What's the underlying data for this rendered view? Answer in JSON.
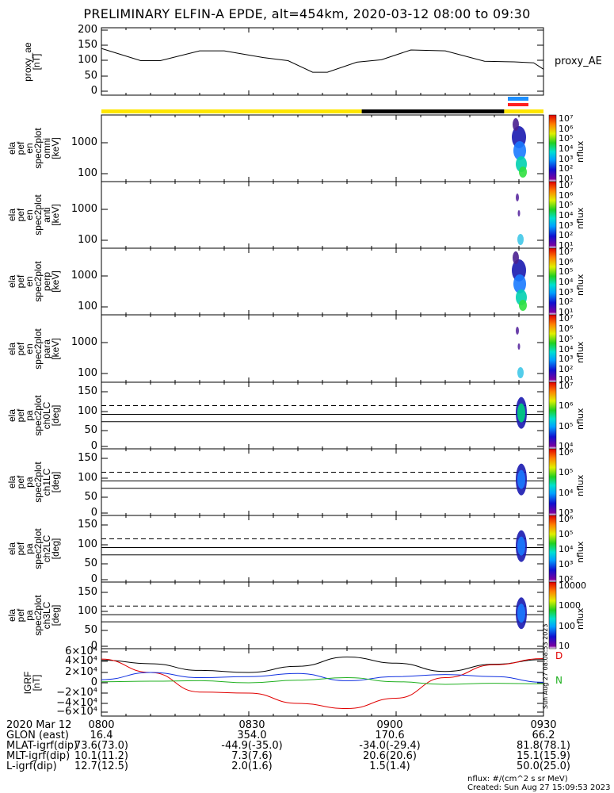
{
  "title": "PRELIMINARY ELFIN-A EPDE, alt=454km, 2020-03-12 08:00 to 09:30",
  "panels": [
    {
      "ylabel": [
        "proxy_ae",
        "[nT]"
      ],
      "right_label": "proxy_AE",
      "yticks": [
        "200",
        "150",
        "100",
        "50",
        "0"
      ]
    },
    {
      "ylabel": [
        "ela",
        "pef",
        "en",
        "spec2plot",
        "omni",
        "[keV]"
      ],
      "yticks": [
        "1000",
        "100"
      ],
      "cbar_ticks": [
        "10⁷",
        "10⁶",
        "10⁵",
        "10⁴",
        "10³",
        "10²",
        "10¹"
      ],
      "cbar_label": "nflux"
    },
    {
      "ylabel": [
        "ela",
        "pef",
        "en",
        "spec2plot",
        "anti",
        "[keV]"
      ],
      "yticks": [
        "1000",
        "100"
      ],
      "cbar_ticks": [
        "10⁷",
        "10⁶",
        "10⁵",
        "10⁴",
        "10³",
        "10²",
        "10¹"
      ],
      "cbar_label": "nflux"
    },
    {
      "ylabel": [
        "ela",
        "pef",
        "en",
        "spec2plot",
        "perp",
        "[keV]"
      ],
      "yticks": [
        "1000",
        "100"
      ],
      "cbar_ticks": [
        "10⁷",
        "10⁶",
        "10⁵",
        "10⁴",
        "10³",
        "10²",
        "10¹"
      ],
      "cbar_label": "nflux"
    },
    {
      "ylabel": [
        "ela",
        "pef",
        "en",
        "spec2plot",
        "para",
        "[keV]"
      ],
      "yticks": [
        "1000",
        "100"
      ],
      "cbar_ticks": [
        "10⁷",
        "10⁶",
        "10⁵",
        "10⁴",
        "10³",
        "10²",
        "10¹"
      ],
      "cbar_label": "nflux"
    },
    {
      "ylabel": [
        "ela",
        "pef",
        "pa",
        "spec2plot",
        "ch0LC",
        "[deg]"
      ],
      "yticks": [
        "150",
        "100",
        "50",
        "0"
      ],
      "cbar_ticks": [
        "10⁷",
        "10⁶",
        "10⁵",
        "10⁴"
      ],
      "cbar_label": "nflux"
    },
    {
      "ylabel": [
        "ela",
        "pef",
        "pa",
        "spec2plot",
        "ch1LC",
        "[deg]"
      ],
      "yticks": [
        "150",
        "100",
        "50",
        "0"
      ],
      "cbar_ticks": [
        "10⁶",
        "10⁵",
        "10⁴",
        "10³"
      ],
      "cbar_label": "nflux"
    },
    {
      "ylabel": [
        "ela",
        "pef",
        "pa",
        "spec2plot",
        "ch2LC",
        "[deg]"
      ],
      "yticks": [
        "150",
        "100",
        "50",
        "0"
      ],
      "cbar_ticks": [
        "10⁶",
        "10⁵",
        "10⁴",
        "10³",
        "10²"
      ],
      "cbar_label": "nflux"
    },
    {
      "ylabel": [
        "ela",
        "pef",
        "pa",
        "spec2plot",
        "ch3LC",
        "[deg]"
      ],
      "yticks": [
        "150",
        "100",
        "50",
        "0"
      ],
      "cbar_ticks": [
        "10000",
        "1000",
        "100",
        "10"
      ],
      "cbar_label": "nflux"
    },
    {
      "ylabel": [
        "IGRF",
        "[nT]"
      ],
      "yticks": [
        "6×10⁴",
        "4×10⁴",
        "2×10⁴",
        "0",
        "−2×10⁴",
        "−4×10⁴",
        "−6×10⁴"
      ],
      "right_marks": [
        "D",
        "N"
      ]
    }
  ],
  "footer": {
    "rows": [
      {
        "label": "2020 Mar 12",
        "vals": [
          "0800",
          "0830",
          "0900",
          "0930"
        ]
      },
      {
        "label": "GLON (east)",
        "vals": [
          "16.4",
          "354.0",
          "170.6",
          "66.2"
        ]
      },
      {
        "label": "MLAT-igrf(dip)",
        "vals": [
          "73.6(73.0)",
          "-44.9(-35.0)",
          "-34.0(-29.4)",
          "81.8(78.1)"
        ]
      },
      {
        "label": "MLT-igrf(dip)",
        "vals": [
          "10.1(11.2)",
          "7.3(7.6)",
          "20.6(20.6)",
          "15.1(15.9)"
        ]
      },
      {
        "label": "L-igrf(dip)",
        "vals": [
          "12.7(12.5)",
          "2.0(1.6)",
          "1.5(1.4)",
          "50.0(25.0)"
        ]
      }
    ],
    "units": "nflux: #/(cm^2 s sr MeV)",
    "created": "Created: Sun Aug 27 15:09:53 2023",
    "side_stamp": "Sun Aug 27 08:08:53 2023"
  },
  "chart_data": {
    "type": "line",
    "x_range": [
      "08:00",
      "09:30"
    ],
    "series": [
      {
        "name": "proxy_AE",
        "x": [
          "08:00",
          "08:03",
          "08:08",
          "08:12",
          "08:20",
          "08:25",
          "08:33",
          "08:38",
          "08:43",
          "08:46",
          "08:52",
          "08:57",
          "09:03",
          "09:10",
          "09:18",
          "09:24",
          "09:28",
          "09:30"
        ],
        "values": [
          140,
          125,
          100,
          100,
          132,
          132,
          110,
          100,
          62,
          62,
          95,
          103,
          135,
          132,
          98,
          96,
          93,
          72
        ]
      },
      {
        "name": "IGRF black",
        "x": [
          "08:00",
          "08:10",
          "08:20",
          "08:30",
          "08:40",
          "08:50",
          "09:00",
          "09:10",
          "09:20",
          "09:30"
        ],
        "values": [
          44000,
          37000,
          24000,
          20000,
          32000,
          50000,
          38000,
          22000,
          36000,
          45000
        ]
      },
      {
        "name": "IGRF red",
        "x": [
          "08:00",
          "08:10",
          "08:20",
          "08:30",
          "08:40",
          "08:50",
          "09:00",
          "09:10",
          "09:20",
          "09:30"
        ],
        "values": [
          46000,
          20000,
          -18000,
          -20000,
          -40000,
          -50000,
          -30000,
          10000,
          35000,
          47000
        ]
      },
      {
        "name": "IGRF blue",
        "x": [
          "08:00",
          "08:10",
          "08:20",
          "08:30",
          "08:40",
          "08:50",
          "09:00",
          "09:10",
          "09:20",
          "09:30"
        ],
        "values": [
          6000,
          20000,
          10000,
          12000,
          18000,
          4000,
          12000,
          16000,
          12000,
          1000
        ]
      },
      {
        "name": "IGRF green",
        "x": [
          "08:00",
          "08:10",
          "08:20",
          "08:30",
          "08:40",
          "08:50",
          "09:00",
          "09:10",
          "09:20",
          "09:30"
        ],
        "values": [
          2000,
          3000,
          4000,
          0,
          5000,
          10000,
          2000,
          -3000,
          -1000,
          -2000
        ]
      }
    ],
    "status_bar": [
      {
        "from": "08:00",
        "to": "08:53",
        "color": "#ffe600"
      },
      {
        "from": "08:53",
        "to": "09:22",
        "color": "#000000"
      },
      {
        "from": "09:22",
        "to": "09:30",
        "color": "#ffe600"
      }
    ],
    "markers": [
      {
        "at": "09:25",
        "colors": [
          "#1e90ff",
          "#ff2020"
        ]
      }
    ],
    "spectrogram_events": [
      {
        "from": "09:24",
        "to": "09:27"
      }
    ],
    "dashed_line_deg": 112,
    "solid_lines_deg": [
      88,
      68
    ],
    "yscale_energy": "log"
  }
}
